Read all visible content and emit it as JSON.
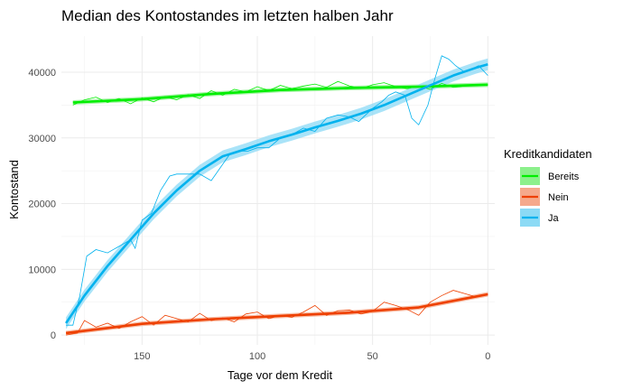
{
  "chart_data": {
    "type": "line",
    "title": "Median des Kontostandes im letzten halben Jahr",
    "xlabel": "Tage vor dem Kredit",
    "ylabel": "Kontostand",
    "x_reversed": true,
    "xlim": [
      185,
      -3
    ],
    "ylim": [
      -1500,
      45500
    ],
    "x_ticks": [
      150,
      100,
      50,
      0
    ],
    "y_ticks": [
      0,
      10000,
      20000,
      30000,
      40000
    ],
    "y_tick_labels": [
      "0",
      "10000",
      "20000",
      "30000",
      "40000"
    ],
    "grid": true,
    "legend": {
      "title": "Kreditkandidaten",
      "position": "right",
      "items": [
        {
          "name": "Bereits",
          "color": "#00ee00",
          "fill": "#8cf08c"
        },
        {
          "name": "Nein",
          "color": "#ee4000",
          "fill": "#f5a98c"
        },
        {
          "name": "Ja",
          "color": "#00b2ee",
          "fill": "#8cdaf5"
        }
      ]
    },
    "series": [
      {
        "name": "Bereits",
        "color": "#00ee00",
        "raw": {
          "x": [
            180,
            175,
            170,
            165,
            160,
            155,
            150,
            145,
            140,
            135,
            130,
            125,
            120,
            115,
            110,
            105,
            100,
            95,
            90,
            85,
            80,
            75,
            70,
            65,
            60,
            55,
            50,
            45,
            40,
            35,
            30,
            25,
            20,
            15,
            10,
            5,
            0
          ],
          "y": [
            35000,
            35800,
            36200,
            35400,
            36000,
            35200,
            36100,
            35500,
            36300,
            35800,
            36600,
            36000,
            37200,
            36500,
            37400,
            37000,
            37800,
            37200,
            38000,
            37500,
            37900,
            38200,
            37700,
            38600,
            37900,
            37500,
            38100,
            38400,
            37800,
            37500,
            37900,
            37400,
            38300,
            37700,
            37900,
            38000,
            38100
          ]
        },
        "smooth": {
          "x": [
            180,
            150,
            120,
            90,
            60,
            30,
            0
          ],
          "y": [
            35400,
            35900,
            36700,
            37300,
            37600,
            37800,
            38100
          ],
          "band": 350
        }
      },
      {
        "name": "Nein",
        "color": "#ee4000",
        "raw": {
          "x": [
            183,
            178,
            175,
            170,
            165,
            160,
            155,
            150,
            145,
            140,
            135,
            130,
            125,
            120,
            115,
            110,
            105,
            100,
            95,
            90,
            85,
            80,
            75,
            70,
            65,
            60,
            55,
            50,
            45,
            40,
            35,
            30,
            25,
            20,
            15,
            10,
            5,
            0
          ],
          "y": [
            0,
            300,
            2200,
            1200,
            1800,
            1000,
            2000,
            2800,
            1500,
            3000,
            2500,
            2000,
            3300,
            2200,
            2600,
            2000,
            3200,
            3500,
            2500,
            3000,
            2700,
            3500,
            4500,
            3000,
            3700,
            3800,
            3200,
            3600,
            5000,
            4500,
            3900,
            3000,
            5000,
            6000,
            6800,
            6300,
            5800,
            6300
          ]
        },
        "smooth": {
          "x": [
            183,
            150,
            120,
            90,
            60,
            30,
            0
          ],
          "y": [
            300,
            1700,
            2400,
            2900,
            3400,
            4200,
            6200
          ],
          "band": 350
        }
      },
      {
        "name": "Ja",
        "color": "#00b2ee",
        "raw": {
          "x": [
            183,
            180,
            177,
            174,
            170,
            165,
            160,
            155,
            153,
            150,
            146,
            142,
            138,
            135,
            130,
            125,
            120,
            115,
            112,
            108,
            104,
            100,
            95,
            90,
            85,
            80,
            75,
            70,
            65,
            60,
            56,
            53,
            50,
            46,
            43,
            40,
            36,
            33,
            30,
            26,
            23,
            20,
            17,
            14,
            10,
            7,
            4,
            0
          ],
          "y": [
            1500,
            1500,
            6000,
            12000,
            13000,
            12500,
            13500,
            14500,
            13200,
            17500,
            18500,
            22000,
            24200,
            24500,
            24500,
            24500,
            23500,
            26000,
            27500,
            28000,
            28000,
            28500,
            28500,
            30000,
            30500,
            31500,
            31000,
            33000,
            33500,
            33200,
            32500,
            33500,
            34500,
            35500,
            36500,
            37000,
            36500,
            33000,
            32000,
            35000,
            39000,
            42500,
            42000,
            41000,
            40000,
            40500,
            41000,
            39500
          ]
        },
        "smooth": {
          "x": [
            183,
            175,
            165,
            155,
            145,
            135,
            125,
            115,
            105,
            95,
            85,
            75,
            65,
            55,
            45,
            35,
            25,
            15,
            5,
            0
          ],
          "y": [
            1800,
            6000,
            10500,
            14500,
            18500,
            22000,
            25000,
            27200,
            28300,
            29500,
            30500,
            31600,
            32600,
            33700,
            35000,
            36500,
            38000,
            39500,
            40700,
            41200
          ],
          "band": 900
        }
      }
    ]
  }
}
